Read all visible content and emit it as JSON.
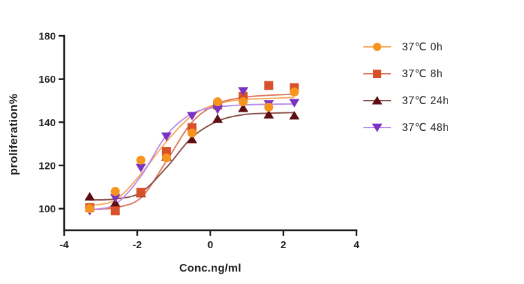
{
  "figure": {
    "background": "#FFFFFF",
    "text_color": "#231F20",
    "axis_color": "#1A1A1A"
  },
  "chart_data": {
    "type": "line",
    "title": "",
    "xlabel": "Conc.ng/ml",
    "ylabel": "proliferation%",
    "xlim": [
      -4,
      4
    ],
    "ylim": [
      90,
      180
    ],
    "xticks": [
      -4,
      -2,
      0,
      2,
      4
    ],
    "yticks": [
      100,
      120,
      140,
      160,
      180
    ],
    "grid": false,
    "legend_position": "right",
    "x": [
      -3.3,
      -2.6,
      -1.9,
      -1.2,
      -0.5,
      0.2,
      0.9,
      1.6,
      2.3
    ],
    "series": [
      {
        "name": "37℃ 0h",
        "marker": "circle",
        "marker_color": "#F7941E",
        "line_color": "#F8A95C",
        "values": [
          100,
          108,
          122.5,
          123.5,
          135,
          149.5,
          149.5,
          147,
          154
        ],
        "curve": [
          101.5,
          104,
          116,
          131,
          143,
          148.5,
          150.5,
          151,
          151.5
        ]
      },
      {
        "name": "37℃ 8h",
        "marker": "square",
        "marker_color": "#D8512A",
        "line_color": "#E0785D",
        "values": [
          100.5,
          99,
          107.5,
          126.5,
          137.5,
          148,
          152,
          157,
          156
        ],
        "curve": [
          99.5,
          100.5,
          105,
          122,
          140,
          148.5,
          151.5,
          152.5,
          153
        ]
      },
      {
        "name": "37℃ 24h",
        "marker": "triangle-up",
        "marker_color": "#5C0E13",
        "line_color": "#8A4F49",
        "values": [
          105.5,
          102.5,
          107,
          124,
          132,
          141.5,
          146.5,
          143.5,
          143
        ],
        "curve": [
          104,
          104.5,
          107.5,
          119,
          133,
          140.5,
          143.5,
          144.2,
          144.5
        ]
      },
      {
        "name": "37℃ 48h",
        "marker": "triangle-down",
        "marker_color": "#7B33C4",
        "line_color": "#B98DE9",
        "values": [
          99,
          105,
          119,
          133.5,
          143,
          146,
          154.5,
          148.5,
          149
        ],
        "curve": [
          99.5,
          102,
          115,
          134,
          144,
          147,
          148,
          148.3,
          148.5
        ]
      }
    ]
  }
}
